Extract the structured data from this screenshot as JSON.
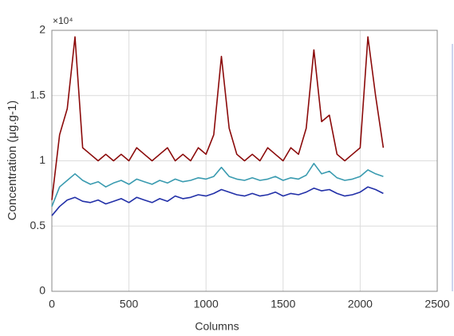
{
  "chart_data": {
    "type": "line",
    "xlabel": "Columns",
    "ylabel": "Concentration (μg.g-1)",
    "y_exponent": "×10⁴",
    "x": [
      0,
      50,
      100,
      150,
      200,
      250,
      300,
      350,
      400,
      450,
      500,
      550,
      600,
      650,
      700,
      750,
      800,
      850,
      900,
      950,
      1000,
      1050,
      1100,
      1150,
      1200,
      1250,
      1300,
      1350,
      1400,
      1450,
      1500,
      1550,
      1600,
      1650,
      1700,
      1750,
      1800,
      1850,
      1900,
      1950,
      2000,
      2050,
      2100,
      2150
    ],
    "series": [
      {
        "color": "#8b0a0a",
        "values": [
          7000,
          12000,
          14000,
          19500,
          11000,
          10500,
          10000,
          10500,
          10000,
          10500,
          10000,
          11000,
          10500,
          10000,
          10500,
          11000,
          10000,
          10500,
          10000,
          11000,
          10500,
          12000,
          18000,
          12500,
          10500,
          10000,
          10500,
          10000,
          11000,
          10500,
          10000,
          11000,
          10500,
          12500,
          18500,
          13000,
          13500,
          10500,
          10000,
          10500,
          11000,
          19500,
          15000,
          11000
        ]
      },
      {
        "color": "#3a9bb0",
        "values": [
          6500,
          8000,
          8500,
          9000,
          8500,
          8200,
          8400,
          8000,
          8300,
          8500,
          8200,
          8600,
          8400,
          8200,
          8500,
          8300,
          8600,
          8400,
          8500,
          8700,
          8600,
          8800,
          9500,
          8800,
          8600,
          8500,
          8700,
          8500,
          8600,
          8800,
          8500,
          8700,
          8600,
          8900,
          9800,
          9000,
          9200,
          8700,
          8500,
          8600,
          8800,
          9300,
          9000,
          8800
        ]
      },
      {
        "color": "#2230a8",
        "values": [
          5800,
          6500,
          7000,
          7200,
          6900,
          6800,
          7000,
          6700,
          6900,
          7100,
          6800,
          7200,
          7000,
          6800,
          7100,
          6900,
          7300,
          7100,
          7200,
          7400,
          7300,
          7500,
          7800,
          7600,
          7400,
          7300,
          7500,
          7300,
          7400,
          7600,
          7300,
          7500,
          7400,
          7600,
          7900,
          7700,
          7800,
          7500,
          7300,
          7400,
          7600,
          8000,
          7800,
          7500
        ]
      }
    ],
    "xlim": [
      0,
      2500
    ],
    "xticks": [
      0,
      500,
      1000,
      1500,
      2000,
      2500
    ],
    "ylim": [
      0,
      20000
    ],
    "yticks": [
      0,
      {
        "value": 5000,
        "label": "0.5"
      },
      {
        "value": 10000,
        "label": "1"
      },
      {
        "value": 15000,
        "label": "1.5"
      },
      {
        "value": 20000,
        "label": "2"
      }
    ],
    "grid": true
  }
}
